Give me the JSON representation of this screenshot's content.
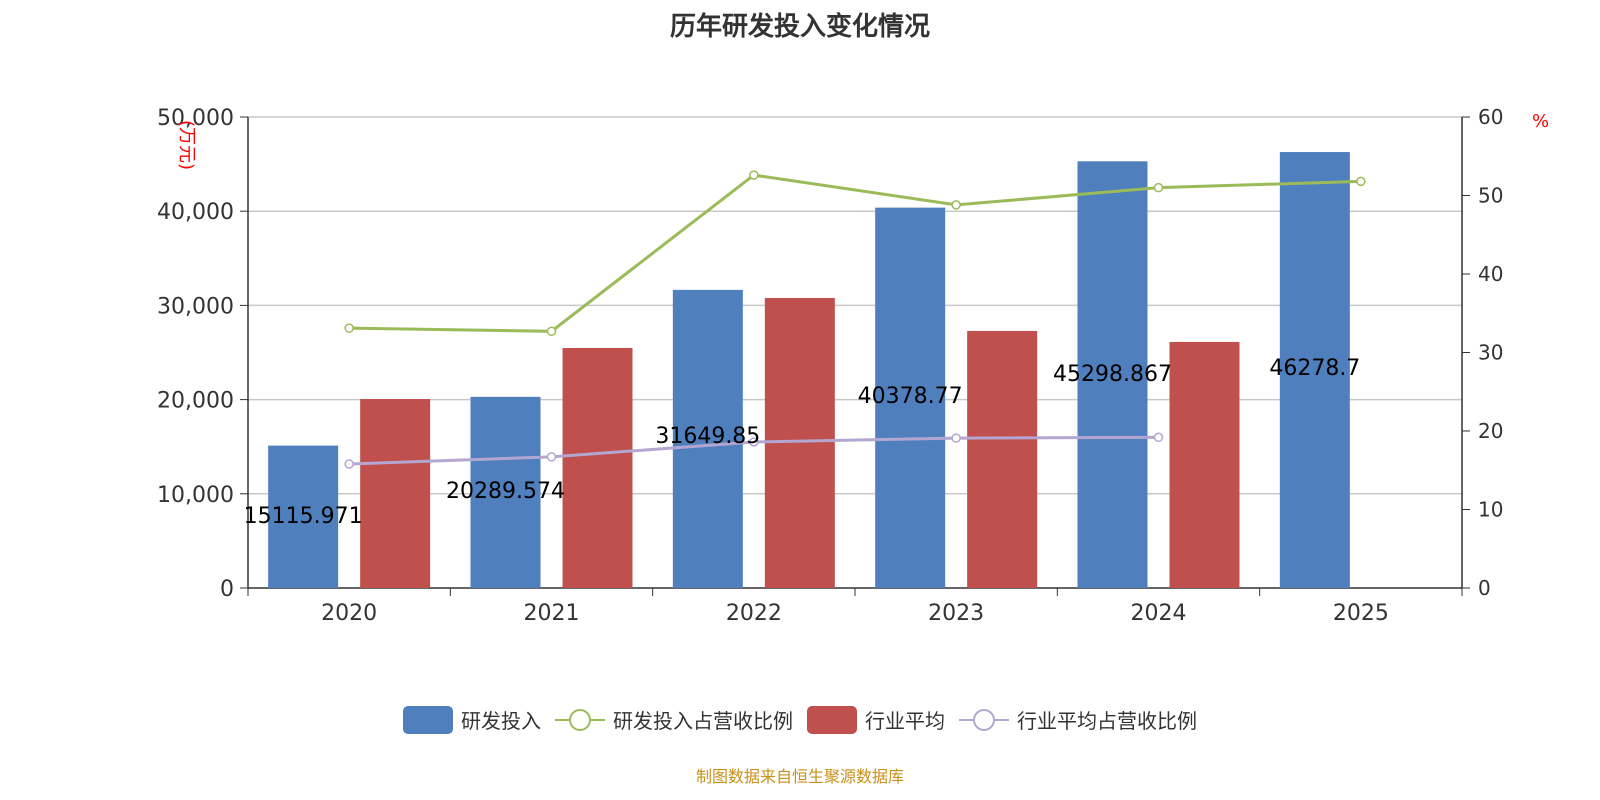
{
  "title": "历年研发投入变化情况",
  "source": "制图数据来自恒生聚源数据库",
  "chart_data": {
    "type": "bar",
    "title": "历年研发投入变化情况",
    "categories": [
      "2020",
      "2021",
      "2022",
      "2023",
      "2024",
      "2025"
    ],
    "left_axis": {
      "label": "(万元)",
      "range": [
        0,
        50000
      ],
      "ticks": [
        "0",
        "10,000",
        "20,000",
        "30,000",
        "40,000",
        "50,000"
      ]
    },
    "right_axis": {
      "label": "%",
      "range": [
        0,
        60
      ],
      "ticks": [
        "0",
        "10",
        "20",
        "30",
        "40",
        "50",
        "60"
      ]
    },
    "series": [
      {
        "name": "研发投入",
        "type": "bar",
        "axis": "left",
        "color": "#4f7fbd",
        "values": [
          15115.971,
          20289.574,
          31649.85,
          40378.77,
          45298.867,
          46278.7
        ],
        "labels": [
          "15115.971",
          "20289.574",
          "31649.85",
          "40378.77",
          "45298.867",
          "46278.7"
        ]
      },
      {
        "name": "研发投入占营收比例",
        "type": "line",
        "axis": "right",
        "color": "#9bbb59",
        "values": [
          33.1,
          32.7,
          52.6,
          48.8,
          51.0,
          51.8
        ]
      },
      {
        "name": "行业平均",
        "type": "bar",
        "axis": "left",
        "color": "#c0504d",
        "values": [
          20060,
          25480,
          30790,
          27290,
          26120,
          null
        ]
      },
      {
        "name": "行业平均占营收比例",
        "type": "line",
        "axis": "right",
        "color": "#b3a6d0",
        "values": [
          15.8,
          16.7,
          18.6,
          19.1,
          19.2,
          null
        ]
      }
    ],
    "grid": true,
    "legend": "bottom"
  }
}
